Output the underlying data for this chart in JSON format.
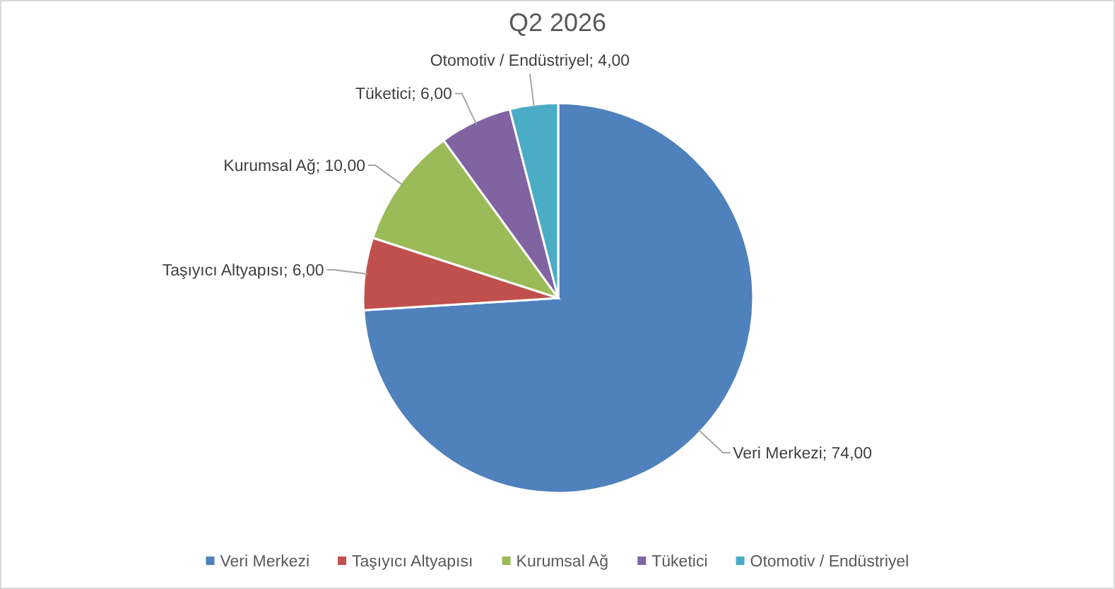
{
  "chart_data": {
    "type": "pie",
    "title": "Q2 2026",
    "categories": [
      "Veri Merkezi",
      "Taşıyıcı Altyapısı",
      "Kurumsal Ağ",
      "Tüketici",
      "Otomotiv / Endüstriyel"
    ],
    "values": [
      74,
      6,
      10,
      6,
      4
    ],
    "colors": [
      "#4f81bd",
      "#c0504d",
      "#9bbb59",
      "#8064a2",
      "#4bacc6"
    ],
    "value_labels": [
      "Veri Merkezi; 74,00",
      "Taşıyıcı Altyapısı; 6,00",
      "Kurumsal Ağ; 10,00",
      "Tüketici; 6,00",
      "Otomotiv / Endüstriyel; 4,00"
    ],
    "legend": "bottom"
  }
}
